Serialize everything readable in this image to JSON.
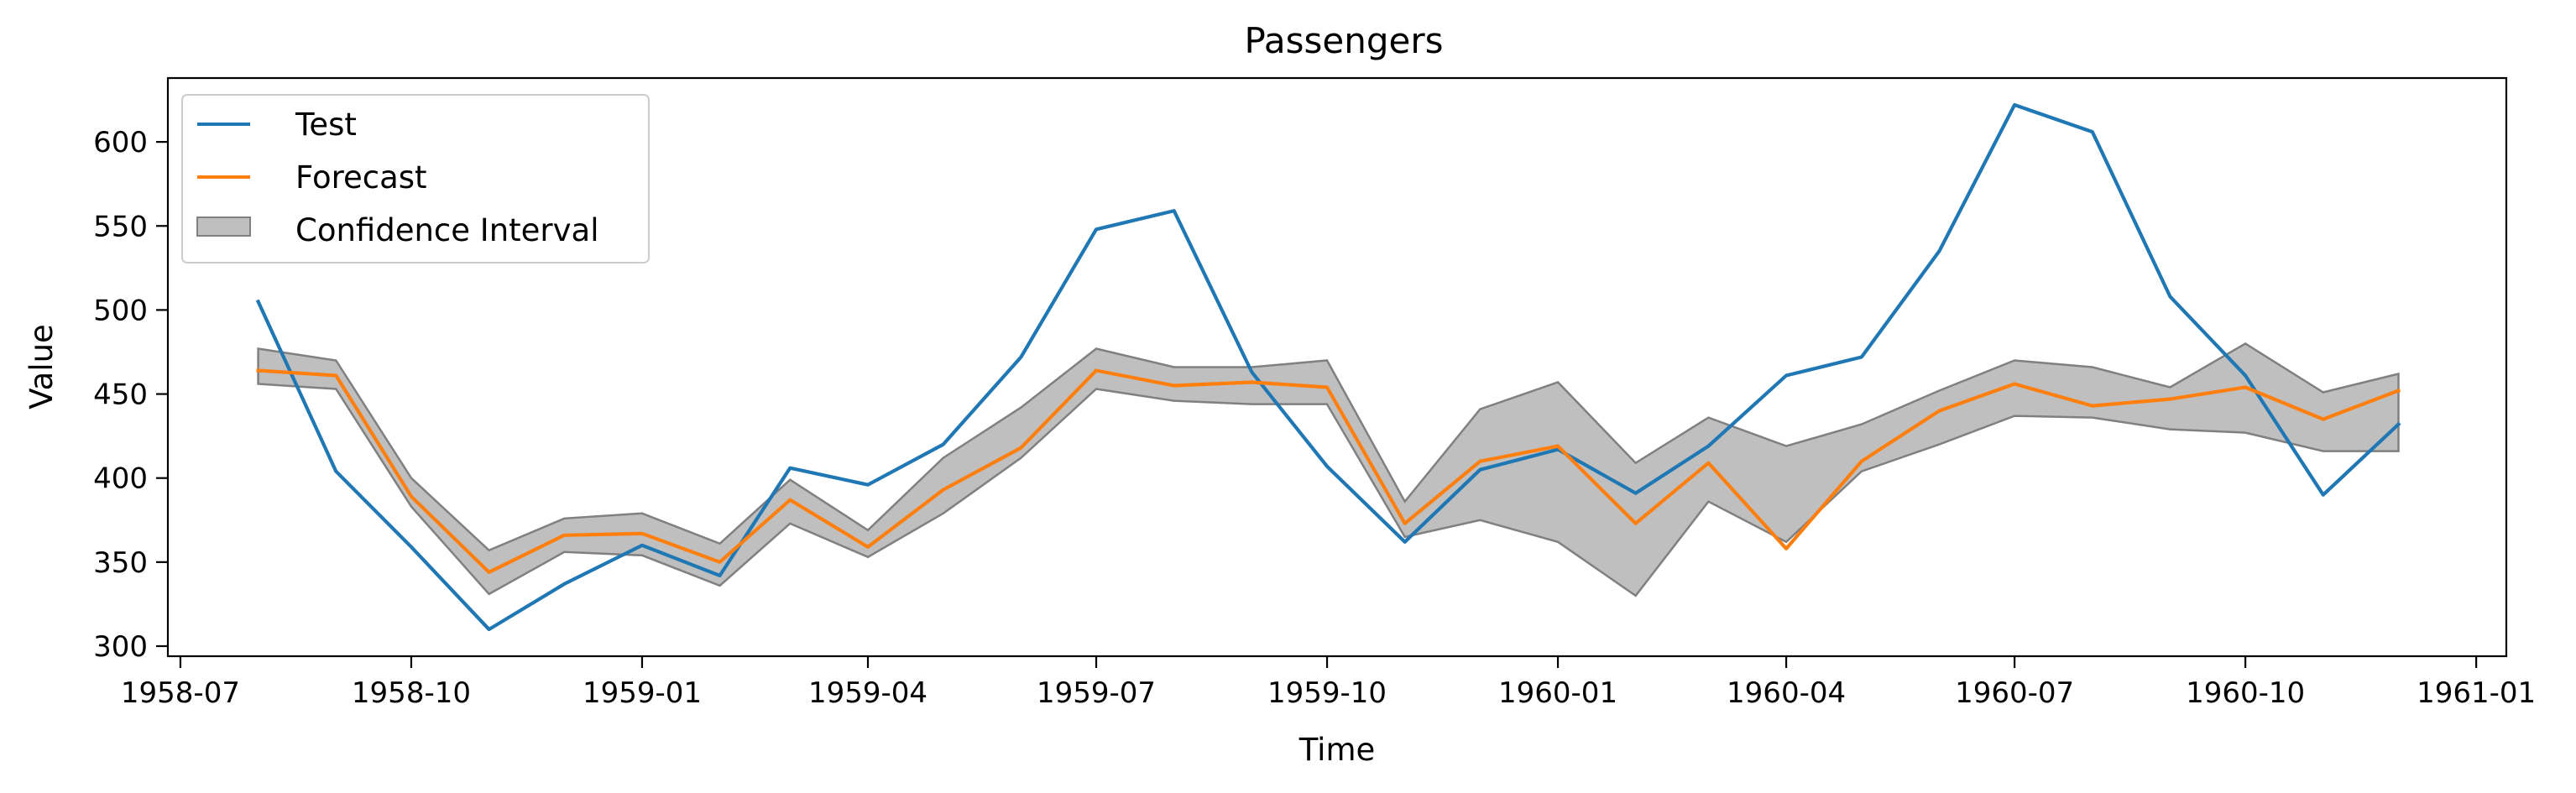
{
  "chart_data": {
    "type": "line",
    "title": "Passengers",
    "xlabel": "Time",
    "ylabel": "Value",
    "x_ticks": [
      "1958-07",
      "1958-10",
      "1959-01",
      "1959-04",
      "1959-07",
      "1959-10",
      "1960-01",
      "1960-04",
      "1960-07",
      "1960-10",
      "1961-01"
    ],
    "y_ticks": [
      300,
      350,
      400,
      450,
      500,
      550,
      600
    ],
    "xlim": [
      "1958-06-26",
      "1961-01-13"
    ],
    "ylim": [
      294,
      638
    ],
    "grid": false,
    "legend": "top-left",
    "x": [
      "1958-08",
      "1958-09",
      "1958-10",
      "1958-11",
      "1958-12",
      "1959-01",
      "1959-02",
      "1959-03",
      "1959-04",
      "1959-05",
      "1959-06",
      "1959-07",
      "1959-08",
      "1959-09",
      "1959-10",
      "1959-11",
      "1959-12",
      "1960-01",
      "1960-02",
      "1960-03",
      "1960-04",
      "1960-05",
      "1960-06",
      "1960-07",
      "1960-08",
      "1960-09",
      "1960-10",
      "1960-11",
      "1960-12"
    ],
    "series": [
      {
        "name": "Test",
        "kind": "line",
        "color": "#1f77b4",
        "values": [
          505,
          404,
          359,
          310,
          337,
          360,
          342,
          406,
          396,
          420,
          472,
          548,
          559,
          463,
          407,
          362,
          405,
          417,
          391,
          419,
          461,
          472,
          535,
          622,
          606,
          508,
          461,
          390,
          432
        ]
      },
      {
        "name": "Forecast",
        "kind": "line",
        "color": "#ff7f0e",
        "values": [
          464,
          461,
          389,
          344,
          366,
          367,
          350,
          387,
          359,
          393,
          418,
          464,
          455,
          457,
          454,
          373,
          410,
          419,
          373,
          409,
          358,
          410,
          440,
          456,
          443,
          447,
          454,
          435,
          452
        ]
      },
      {
        "name": "Confidence Interval",
        "kind": "band",
        "color": "#808080",
        "lower": [
          456,
          453,
          383,
          331,
          356,
          354,
          336,
          373,
          353,
          379,
          412,
          453,
          446,
          444,
          444,
          365,
          375,
          362,
          330,
          386,
          362,
          404,
          420,
          437,
          436,
          429,
          427,
          416,
          416
        ],
        "upper": [
          477,
          470,
          400,
          357,
          376,
          379,
          361,
          399,
          369,
          412,
          442,
          477,
          466,
          466,
          470,
          386,
          441,
          457,
          409,
          436,
          419,
          432,
          452,
          470,
          466,
          454,
          480,
          451,
          462
        ]
      }
    ]
  }
}
